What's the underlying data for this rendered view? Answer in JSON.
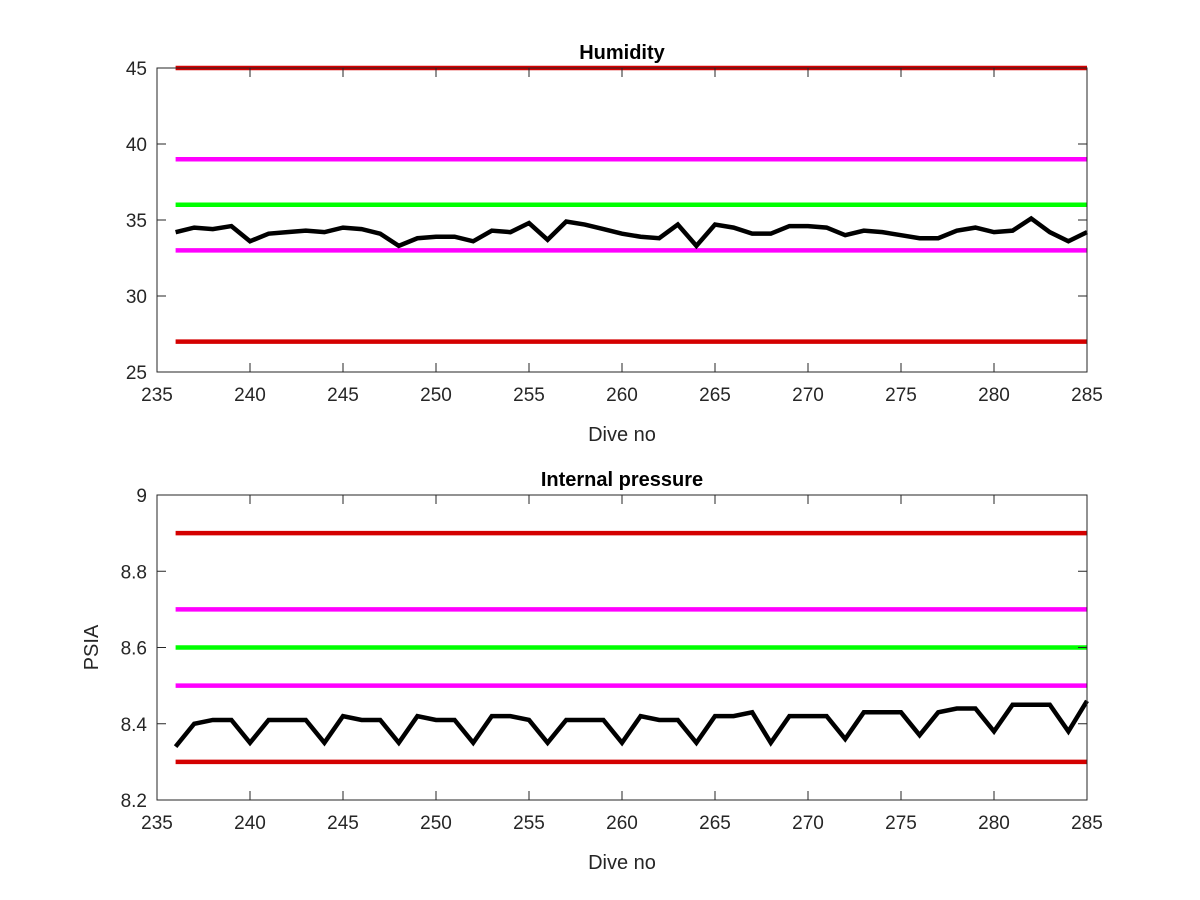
{
  "chart_data": [
    {
      "type": "line",
      "title": "Humidity",
      "xlabel": "Dive no",
      "ylabel": "",
      "xlim": [
        235,
        285
      ],
      "ylim": [
        25,
        45
      ],
      "xticks": [
        235,
        240,
        245,
        250,
        255,
        260,
        265,
        270,
        275,
        280,
        285
      ],
      "yticks": [
        25,
        30,
        35,
        40,
        45
      ],
      "grid": false,
      "legend": "none",
      "thresholds": [
        {
          "value": 45,
          "color": "#d40000",
          "x": [
            236,
            285
          ]
        },
        {
          "value": 39,
          "color": "#ff00ff",
          "x": [
            236,
            285
          ]
        },
        {
          "value": 36,
          "color": "#00ff00",
          "x": [
            236,
            285
          ]
        },
        {
          "value": 33,
          "color": "#ff00ff",
          "x": [
            236,
            285
          ]
        },
        {
          "value": 27,
          "color": "#d40000",
          "x": [
            236,
            285
          ]
        }
      ],
      "series": [
        {
          "color": "#000000",
          "x": [
            236,
            237,
            238,
            239,
            240,
            241,
            242,
            243,
            244,
            245,
            246,
            247,
            248,
            249,
            250,
            251,
            252,
            253,
            254,
            255,
            256,
            257,
            258,
            259,
            260,
            261,
            262,
            263,
            264,
            265,
            266,
            267,
            268,
            269,
            270,
            271,
            272,
            273,
            274,
            275,
            276,
            277,
            278,
            279,
            280,
            281,
            282,
            283,
            284,
            285
          ],
          "y": [
            34.2,
            34.5,
            34.4,
            34.6,
            33.6,
            34.1,
            34.2,
            34.3,
            34.2,
            34.5,
            34.4,
            34.1,
            33.3,
            33.8,
            33.9,
            33.9,
            33.6,
            34.3,
            34.2,
            34.8,
            33.7,
            34.9,
            34.7,
            34.4,
            34.1,
            33.9,
            33.8,
            34.7,
            33.3,
            34.7,
            34.5,
            34.1,
            34.1,
            34.6,
            34.6,
            34.5,
            34.0,
            34.3,
            34.2,
            34.0,
            33.8,
            33.8,
            34.3,
            34.5,
            34.2,
            34.3,
            35.1,
            34.2,
            33.6,
            34.2
          ]
        }
      ]
    },
    {
      "type": "line",
      "title": "Internal pressure",
      "xlabel": "Dive no",
      "ylabel": "PSIA",
      "xlim": [
        235,
        285
      ],
      "ylim": [
        8.2,
        9
      ],
      "xticks": [
        235,
        240,
        245,
        250,
        255,
        260,
        265,
        270,
        275,
        280,
        285
      ],
      "yticks": [
        8.2,
        8.4,
        8.6,
        8.8,
        9
      ],
      "ytick_labels": [
        "8.2",
        "8.4",
        "8.6",
        "8.8",
        "9"
      ],
      "grid": false,
      "legend": "none",
      "thresholds": [
        {
          "value": 8.9,
          "color": "#d40000",
          "x": [
            236,
            285
          ]
        },
        {
          "value": 8.7,
          "color": "#ff00ff",
          "x": [
            236,
            285
          ]
        },
        {
          "value": 8.6,
          "color": "#00ff00",
          "x": [
            236,
            285
          ]
        },
        {
          "value": 8.5,
          "color": "#ff00ff",
          "x": [
            236,
            285
          ]
        },
        {
          "value": 8.3,
          "color": "#d40000",
          "x": [
            236,
            285
          ]
        }
      ],
      "series": [
        {
          "color": "#000000",
          "x": [
            236,
            237,
            238,
            239,
            240,
            241,
            242,
            243,
            244,
            245,
            246,
            247,
            248,
            249,
            250,
            251,
            252,
            253,
            254,
            255,
            256,
            257,
            258,
            259,
            260,
            261,
            262,
            263,
            264,
            265,
            266,
            267,
            268,
            269,
            270,
            271,
            272,
            273,
            274,
            275,
            276,
            277,
            278,
            279,
            280,
            281,
            282,
            283,
            284,
            285
          ],
          "y": [
            8.34,
            8.4,
            8.41,
            8.41,
            8.35,
            8.41,
            8.41,
            8.41,
            8.35,
            8.42,
            8.41,
            8.41,
            8.35,
            8.42,
            8.41,
            8.41,
            8.35,
            8.42,
            8.42,
            8.41,
            8.35,
            8.41,
            8.41,
            8.41,
            8.35,
            8.42,
            8.41,
            8.41,
            8.35,
            8.42,
            8.42,
            8.43,
            8.35,
            8.42,
            8.42,
            8.42,
            8.36,
            8.43,
            8.43,
            8.43,
            8.37,
            8.43,
            8.44,
            8.44,
            8.38,
            8.45,
            8.45,
            8.45,
            8.38,
            8.46
          ]
        }
      ]
    }
  ]
}
